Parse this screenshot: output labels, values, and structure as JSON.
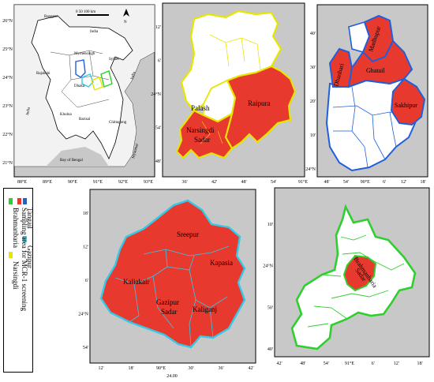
{
  "panel_a": {
    "lat_ticks": [
      "26°N",
      "25°N",
      "24°N",
      "23°N",
      "22°N",
      "21°N"
    ],
    "lon_ticks": [
      "88°E",
      "89°E",
      "90°E",
      "91°E",
      "92°E",
      "93°E"
    ],
    "labels": {
      "india_n": "India",
      "india_w": "India",
      "india_e": "India",
      "rangpur": "Rangpur",
      "mymensingh": "Mymensingh",
      "sylhet": "Sylhet",
      "rajshahi": "Rajshahi",
      "dhaka": "Dhaka",
      "khulna": "Khulna",
      "barisal": "Barisal",
      "chittagong": "Chittagong",
      "bay": "Bay of Bengal",
      "myanmar": "Myanmar"
    },
    "scale_text": "0   50   100 km",
    "north": "N"
  },
  "panel_b": {
    "lat_ticks": [
      "12'",
      "6'",
      "24°N",
      "54'",
      "48'"
    ],
    "lon_ticks": [
      "36'",
      "42'",
      "48'",
      "54'",
      "91°E"
    ],
    "districts": {
      "palash": "Palash",
      "raipura": "Raipura",
      "narsingdi_1": "Narsingdi",
      "narsingdi_2": "Sadar"
    }
  },
  "panel_c": {
    "lat_ticks": [
      "40'",
      "30'",
      "20'",
      "10'",
      "24°N"
    ],
    "lon_ticks": [
      "48'",
      "54'",
      "90°E",
      "6'",
      "12'",
      "18'"
    ],
    "districts": {
      "madhupur": "Madhupur",
      "dhanbari": "Dhanbari",
      "ghatail": "Ghatail",
      "sakhipur": "Sakhipur"
    }
  },
  "panel_d": {
    "lat_ticks": [
      "18'",
      "12'",
      "6'",
      "24°N",
      "54'"
    ],
    "lon_ticks": [
      "12'",
      "18'",
      "90°E",
      "30'",
      "36'",
      "42'"
    ],
    "extra_tick": "24.00",
    "districts": {
      "sreepur": "Sreepur",
      "kapasia": "Kapasia",
      "kaliakair": "Kaliakair",
      "gazipur_1": "Gazipur",
      "gazipur_2": "Sadar",
      "kaliganj": "Kaliganj"
    }
  },
  "panel_e": {
    "lat_ticks": [
      "10'",
      "24°N",
      "50'",
      "40'"
    ],
    "lon_ticks": [
      "42'",
      "48'",
      "54'",
      "91°E",
      "6'",
      "12'",
      "18'"
    ],
    "districts": {
      "brahmanbaria_1": "Brahmanbaria",
      "brahmanbaria_2": "Sadar"
    }
  },
  "legend": {
    "items": [
      {
        "label": "Tangail",
        "color": "#1f5fdc"
      },
      {
        "label": "Gazipur",
        "color": "#36c8e6"
      },
      {
        "label": "Brahmanbaria",
        "color": "#2fcf2f"
      },
      {
        "label": "Narsingdi",
        "color": "#e6e600"
      },
      {
        "label": "Sampling area for MCR-1 screening",
        "color": "#e8392e"
      }
    ]
  },
  "colors": {
    "sampled_fill": "#e8392e",
    "background": "#c8c8c8",
    "tangail": "#1f5fdc",
    "gazipur": "#36c8e6",
    "brahmanbaria": "#2fcf2f",
    "narsingdi": "#e6e600"
  }
}
